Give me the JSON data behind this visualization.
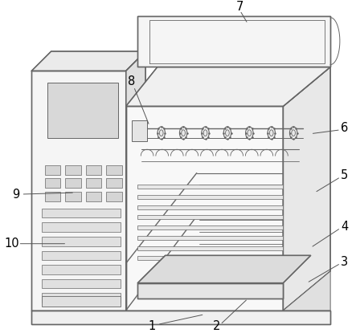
{
  "background_color": "#ffffff",
  "line_color": "#666666",
  "label_color": "#000000",
  "figure_width": 4.43,
  "figure_height": 4.15,
  "dpi": 100
}
